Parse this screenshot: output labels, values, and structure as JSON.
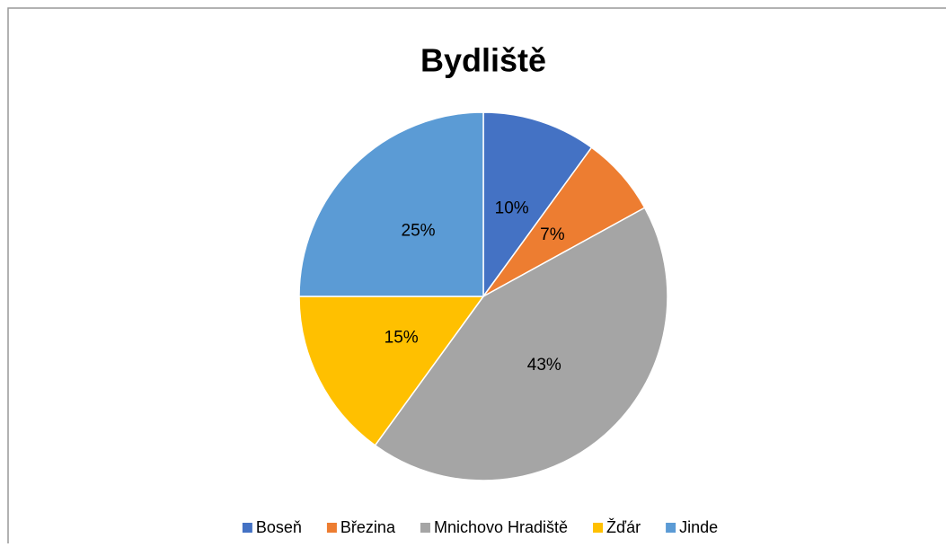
{
  "chart_data": {
    "type": "pie",
    "title": "Bydliště",
    "categories": [
      "Boseň",
      "Březina",
      "Mnichovo Hradiště",
      "Žďár",
      "Jinde"
    ],
    "values": [
      10,
      7,
      43,
      15,
      25
    ],
    "value_labels": [
      "10%",
      "7%",
      "43%",
      "15%",
      "25%"
    ],
    "colors": [
      "#4472c4",
      "#ed7d31",
      "#a5a5a5",
      "#ffc000",
      "#5b9bd5"
    ],
    "legend": "bottom"
  }
}
